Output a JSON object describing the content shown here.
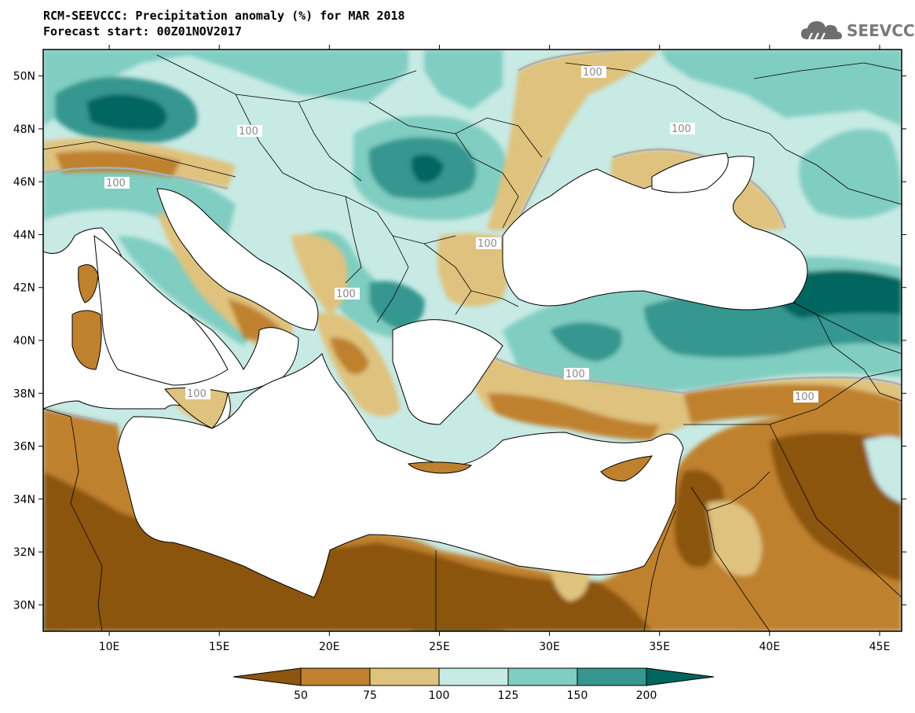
{
  "header": {
    "title_line1": "RCM-SEEVCCC: Precipitation anomaly (%) for MAR 2018",
    "title_line2": "Forecast start: 00Z01NOV2017",
    "logo_text": "SEEVCCC"
  },
  "map": {
    "lon_range": [
      7,
      46
    ],
    "lat_range": [
      29,
      51
    ],
    "x_ticks": [
      "10E",
      "15E",
      "20E",
      "25E",
      "30E",
      "35E",
      "40E",
      "45E"
    ],
    "y_ticks": [
      "30N",
      "32N",
      "34N",
      "36N",
      "38N",
      "40N",
      "42N",
      "44N",
      "46N",
      "48N",
      "50N"
    ],
    "contour_label": "100",
    "sea_color": "#ffffff",
    "coast_color": "#000000",
    "contour_color": "#a9b0b8"
  },
  "colorbar": {
    "levels": [
      "50",
      "75",
      "100",
      "125",
      "150",
      "200"
    ],
    "colors": [
      "#8c5510",
      "#bf812d",
      "#dfc27d",
      "#c7eae5",
      "#80cdc1",
      "#35978f",
      "#01665e"
    ]
  }
}
